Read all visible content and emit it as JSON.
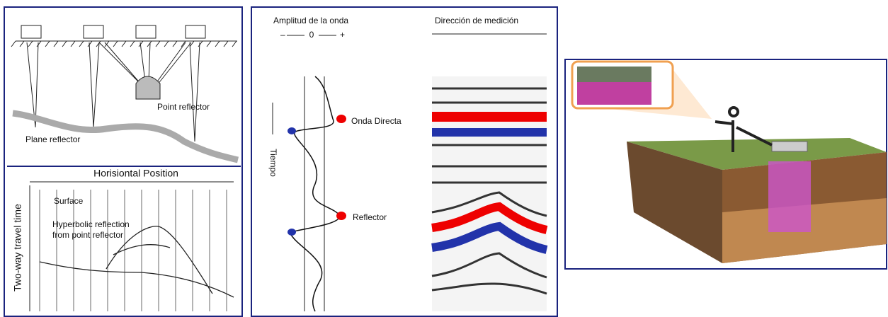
{
  "panels": [
    {
      "labels": {
        "point_reflector": "Point reflector",
        "plane_reflector": "Plane reflector",
        "horizontal_position": "Horisiontal Position",
        "surface": "Surface",
        "hyperbolic_line1": "Hyperbolic reflection",
        "hyperbolic_line2": "from point reflector",
        "y_axis": "Two-way travel time"
      }
    },
    {
      "labels": {
        "amplitude": "Amplitud de la onda",
        "minus": "–",
        "zero": "0",
        "plus": "+",
        "direction": "Dirección de medición",
        "time": "Tiempo",
        "direct_wave": "Onda Directa",
        "reflector": "Reflector"
      }
    }
  ]
}
